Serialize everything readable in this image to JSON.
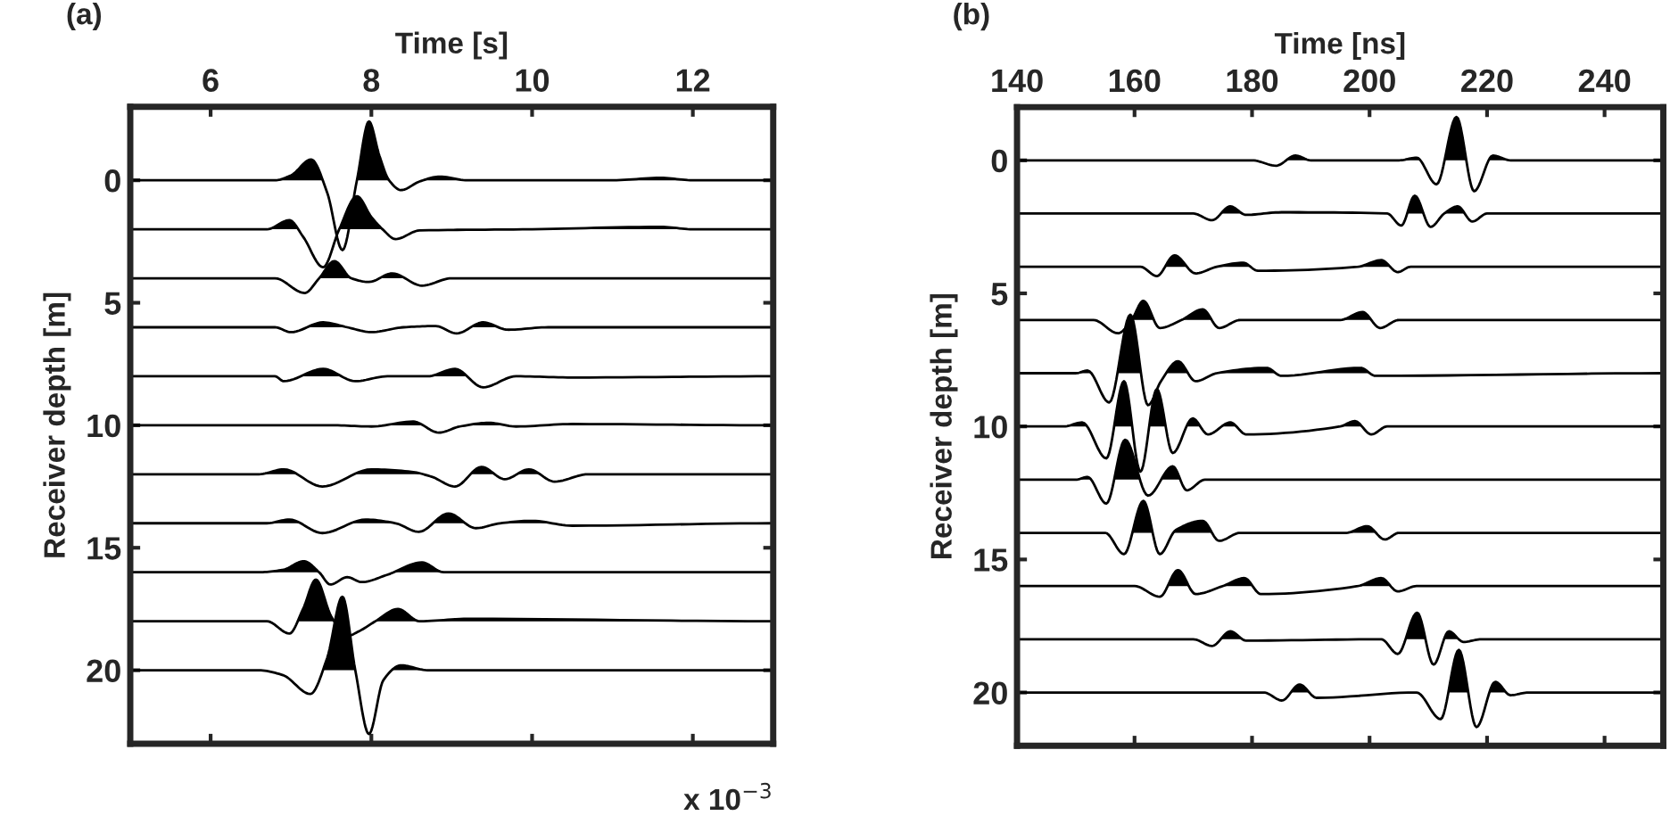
{
  "chart_data": [
    {
      "type": "line",
      "xlabel": "Time [s]",
      "ylabel": "Receiver depth [m]",
      "xlim": [
        5,
        13
      ],
      "xticks": [
        6,
        8,
        10,
        12
      ],
      "ylim": [
        23,
        -3
      ],
      "yticks": [
        0,
        5,
        10,
        15,
        20
      ],
      "annotations": [
        "(a)",
        "x 10$^{−3}$"
      ],
      "series": [
        {
          "color": "#000000",
          "x": [
            5,
            6.8,
            7.0,
            7.25,
            7.45,
            7.64,
            7.82,
            7.97,
            8.1,
            8.22,
            8.37,
            8.6,
            8.85,
            9.2,
            10,
            11,
            11.6,
            12,
            13
          ],
          "values": [
            0,
            0,
            -0.2,
            -0.85,
            0.5,
            2.85,
            0,
            -2.4,
            -1.0,
            0,
            0.4,
            0.05,
            -0.15,
            0,
            0,
            0,
            -0.1,
            0,
            0
          ]
        },
        {
          "color": "#000000",
          "x": [
            5,
            6.7,
            6.98,
            7.15,
            7.4,
            7.6,
            7.82,
            8.0,
            8.14,
            8.3,
            8.6,
            10,
            11.6,
            12,
            13
          ],
          "values": [
            2,
            2,
            1.63,
            2.3,
            3.55,
            2.0,
            0.65,
            1.5,
            2.0,
            2.4,
            2.05,
            2,
            1.9,
            2,
            2
          ]
        },
        {
          "color": "#000000",
          "x": [
            5,
            6.8,
            7.17,
            7.35,
            7.54,
            7.75,
            7.97,
            8.26,
            8.63,
            9.0,
            10,
            13
          ],
          "values": [
            4,
            4,
            4.6,
            4.0,
            3.3,
            4.0,
            4.15,
            3.8,
            4.3,
            4.0,
            4.0,
            4
          ]
        },
        {
          "color": "#000000",
          "x": [
            5,
            6.8,
            7.0,
            7.4,
            7.7,
            8.0,
            8.4,
            8.8,
            9.06,
            9.39,
            9.7,
            10.2,
            13
          ],
          "values": [
            6,
            6,
            6.2,
            5.8,
            6.0,
            6.2,
            6.0,
            5.95,
            6.25,
            5.8,
            6.1,
            6.0,
            6
          ]
        },
        {
          "color": "#000000",
          "x": [
            5,
            6.8,
            6.91,
            7.4,
            7.8,
            8.2,
            8.7,
            9.04,
            9.39,
            9.8,
            10.5,
            13
          ],
          "values": [
            8,
            8,
            8.2,
            7.7,
            8.2,
            8.0,
            8.0,
            7.7,
            8.45,
            8.0,
            8.05,
            8
          ]
        },
        {
          "color": "#000000",
          "x": [
            5,
            7.5,
            8.0,
            8.52,
            8.84,
            9.1,
            9.46,
            9.8,
            10.5,
            13
          ],
          "values": [
            10,
            10,
            10.05,
            9.85,
            10.3,
            10.05,
            9.9,
            10.05,
            9.95,
            10
          ]
        },
        {
          "color": "#000000",
          "x": [
            5,
            6.6,
            6.91,
            7.39,
            8.0,
            8.5,
            8.75,
            9.04,
            9.37,
            9.66,
            9.96,
            10.28,
            10.7,
            13
          ],
          "values": [
            12,
            12,
            11.8,
            12.5,
            11.8,
            11.9,
            12.1,
            12.5,
            11.7,
            12.2,
            11.8,
            12.3,
            12.0,
            12
          ]
        },
        {
          "color": "#000000",
          "x": [
            5,
            6.7,
            6.98,
            7.39,
            7.93,
            8.3,
            8.59,
            8.96,
            9.3,
            9.6,
            10,
            10.5,
            13
          ],
          "values": [
            14,
            14,
            13.85,
            14.4,
            13.85,
            14.0,
            14.35,
            13.6,
            14.2,
            14.0,
            13.9,
            14.1,
            14
          ]
        },
        {
          "color": "#000000",
          "x": [
            5,
            6.6,
            6.9,
            7.16,
            7.35,
            7.49,
            7.7,
            7.88,
            8.2,
            8.63,
            8.9,
            9.5,
            13
          ],
          "values": [
            16,
            16,
            15.9,
            15.55,
            16.0,
            16.5,
            16.2,
            16.4,
            16.1,
            15.6,
            16.0,
            16.0,
            16
          ]
        },
        {
          "color": "#000000",
          "x": [
            5,
            6.7,
            6.98,
            7.15,
            7.31,
            7.5,
            7.7,
            7.85,
            8.05,
            8.33,
            8.6,
            9.2,
            13
          ],
          "values": [
            18,
            18,
            18.5,
            17.5,
            16.3,
            17.8,
            18.6,
            18.4,
            18.0,
            17.5,
            18.0,
            17.9,
            18
          ]
        },
        {
          "color": "#000000",
          "x": [
            5,
            6.6,
            6.9,
            7.24,
            7.45,
            7.64,
            7.8,
            7.97,
            8.15,
            8.37,
            8.7,
            9.5,
            13
          ],
          "values": [
            20,
            20,
            20.2,
            20.97,
            19.5,
            17.0,
            20.0,
            22.6,
            20.4,
            19.8,
            20.0,
            20.0,
            20
          ]
        }
      ]
    },
    {
      "type": "line",
      "xlabel": "Time [ns]",
      "ylabel": "Receiver depth [m]",
      "xlim": [
        140,
        250
      ],
      "xticks": [
        140,
        160,
        180,
        200,
        220,
        240
      ],
      "ylim": [
        22,
        -2
      ],
      "yticks": [
        0,
        5,
        10,
        15,
        20
      ],
      "annotations": [
        "(b)"
      ],
      "series": [
        {
          "color": "#000000",
          "x": [
            140,
            180,
            184.1,
            187.4,
            190,
            205,
            208,
            211.4,
            214.8,
            217.8,
            221,
            224,
            250
          ],
          "values": [
            0,
            0,
            0.2,
            -0.18,
            0,
            0,
            -0.1,
            0.9,
            -1.63,
            1.16,
            -0.18,
            0,
            0
          ]
        },
        {
          "color": "#000000",
          "x": [
            140,
            170,
            173.2,
            176.3,
            179,
            185,
            203,
            205.4,
            207.7,
            210.4,
            212.7,
            215,
            217.5,
            220,
            250
          ],
          "values": [
            2,
            2,
            2.25,
            1.73,
            2.05,
            1.95,
            2,
            2.45,
            1.33,
            2.5,
            2.0,
            1.73,
            2.3,
            2,
            2
          ]
        },
        {
          "color": "#000000",
          "x": [
            140,
            161,
            163.8,
            166.8,
            170.4,
            174,
            178.5,
            181,
            198,
            202,
            204.8,
            207,
            250
          ],
          "values": [
            4,
            4,
            4.35,
            3.57,
            4.25,
            4.0,
            3.85,
            4.15,
            4.0,
            3.75,
            4.2,
            4,
            4
          ]
        },
        {
          "color": "#000000",
          "x": [
            140,
            153,
            157.2,
            159.5,
            161.5,
            164.3,
            168,
            171.6,
            174.4,
            178,
            195,
            198.8,
            201.8,
            205,
            250
          ],
          "values": [
            6,
            6,
            6.5,
            6.0,
            5.28,
            6.3,
            6.0,
            5.6,
            6.3,
            6.0,
            6.0,
            5.7,
            6.3,
            6,
            6
          ]
        },
        {
          "color": "#000000",
          "x": [
            140,
            150,
            152,
            155.7,
            159.3,
            162.3,
            164.5,
            167.4,
            170.4,
            174,
            182.5,
            185,
            198.5,
            201,
            250
          ],
          "values": [
            8,
            8,
            7.9,
            9.1,
            5.8,
            9.2,
            8.3,
            7.55,
            8.3,
            8.0,
            7.8,
            8.1,
            7.8,
            8.1,
            8
          ]
        },
        {
          "color": "#000000",
          "x": [
            140,
            148,
            151.1,
            155.2,
            158.2,
            161,
            163.8,
            166.5,
            169.9,
            172.5,
            176.3,
            179,
            195,
            197.5,
            200.3,
            203,
            250
          ],
          "values": [
            10,
            10,
            9.85,
            11.2,
            8.3,
            11.7,
            8.6,
            11.0,
            9.7,
            10.3,
            9.85,
            10.3,
            10,
            9.8,
            10.3,
            10,
            10
          ]
        },
        {
          "color": "#000000",
          "x": [
            140,
            150,
            152,
            155.2,
            158.4,
            162.3,
            166.5,
            168.9,
            172,
            250
          ],
          "values": [
            12,
            12,
            11.9,
            12.9,
            10.5,
            12.6,
            11.5,
            12.4,
            12.0,
            12
          ]
        },
        {
          "color": "#000000",
          "x": [
            140,
            155,
            158.2,
            161.5,
            164.3,
            167,
            171.6,
            174.4,
            178,
            196,
            199.6,
            202.6,
            205,
            250
          ],
          "values": [
            14,
            14,
            14.8,
            12.8,
            14.8,
            13.9,
            13.55,
            14.3,
            14,
            14,
            13.75,
            14.25,
            14,
            14
          ]
        },
        {
          "color": "#000000",
          "x": [
            140,
            160,
            164.3,
            167.4,
            170.4,
            175,
            178.7,
            181.5,
            198,
            202,
            204.8,
            208,
            250
          ],
          "values": [
            16,
            16,
            16.4,
            15.4,
            16.3,
            16.0,
            15.7,
            16.3,
            16,
            15.7,
            16.2,
            16,
            16
          ]
        },
        {
          "color": "#000000",
          "x": [
            140,
            170,
            173.2,
            176.3,
            179,
            202,
            204.8,
            208.1,
            210.9,
            213.5,
            216,
            219,
            250
          ],
          "values": [
            18,
            18,
            18.25,
            17.7,
            18.05,
            18,
            18.55,
            17.0,
            18.95,
            17.7,
            18.1,
            18,
            18
          ]
        },
        {
          "color": "#000000",
          "x": [
            140,
            182,
            185.1,
            188.1,
            191,
            208,
            212.1,
            215.2,
            218.2,
            221.4,
            224,
            227,
            250
          ],
          "values": [
            20,
            20,
            20.3,
            19.7,
            20.2,
            20,
            21.0,
            18.4,
            21.3,
            19.6,
            20.1,
            20,
            20
          ]
        }
      ]
    }
  ]
}
